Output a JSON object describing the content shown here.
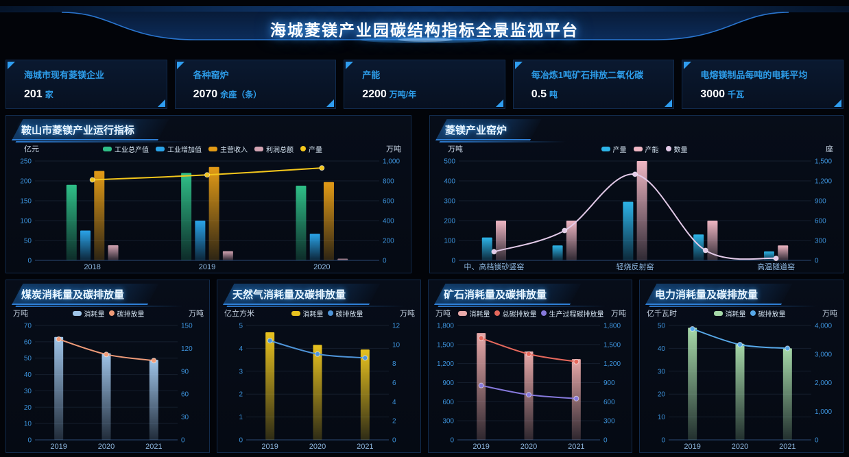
{
  "header": {
    "title": "海城菱镁产业园碳结构指标全景监视平台"
  },
  "colors": {
    "accent_blue": "#2d9ce8",
    "title_glow": "#3da0ff",
    "panel_border": "#122b4c",
    "axis_label": "#3d93dc"
  },
  "stat_cards": [
    {
      "label": "海城市现有菱镁企业",
      "value": "201",
      "unit": "家"
    },
    {
      "label": "各种窑炉",
      "value": "2070",
      "unit": "余座（条）"
    },
    {
      "label": "产能",
      "value": "2200",
      "unit": "万吨/年"
    },
    {
      "label": "每冶炼1吨矿石排放二氧化碳",
      "value": "0.5",
      "unit": "吨"
    },
    {
      "label": "电熔镁制品每吨的电耗平均",
      "value": "3000",
      "unit": "千瓦"
    }
  ],
  "chart_data": [
    {
      "type": "bar+line",
      "title": "鞍山市菱镁产业运行指标",
      "left_unit": "亿元",
      "right_unit": "万吨",
      "left_ticks": [
        0,
        50,
        100,
        150,
        200,
        250
      ],
      "right_ticks": [
        0,
        200,
        400,
        600,
        800,
        1000
      ],
      "categories": [
        "2018",
        "2019",
        "2020"
      ],
      "legend_position": "top-center",
      "grid": true,
      "series": [
        {
          "name": "工业总产值",
          "type": "bar",
          "axis": "left",
          "color": "#2fbf87",
          "values": [
            190,
            220,
            188
          ]
        },
        {
          "name": "工业增加值",
          "type": "bar",
          "axis": "left",
          "color": "#2aa3e8",
          "values": [
            75,
            100,
            67
          ]
        },
        {
          "name": "主营收入",
          "type": "bar",
          "axis": "left",
          "color": "#e39b16",
          "values": [
            225,
            235,
            197
          ]
        },
        {
          "name": "利润总额",
          "type": "bar",
          "axis": "left",
          "color": "#d2a3b2",
          "values": [
            38,
            23,
            4
          ]
        },
        {
          "name": "产量",
          "type": "line",
          "axis": "right",
          "color": "#f3c61c",
          "values": [
            810,
            860,
            930
          ]
        }
      ]
    },
    {
      "type": "bar+line",
      "title": "菱镁产业窑炉",
      "left_unit": "万吨",
      "right_unit": "座",
      "left_ticks": [
        0,
        100,
        200,
        300,
        400,
        500
      ],
      "right_ticks": [
        0,
        300,
        600,
        900,
        1200,
        1500
      ],
      "categories": [
        "中、高档镁砂竖窑",
        "",
        "轻烧反射窑",
        "",
        "高温隧道窑"
      ],
      "legend_position": "top-center",
      "grid": true,
      "series": [
        {
          "name": "产量",
          "type": "bar",
          "axis": "left",
          "color": "#2db4e8",
          "values": [
            115,
            75,
            295,
            130,
            45
          ]
        },
        {
          "name": "产能",
          "type": "bar",
          "axis": "left",
          "color": "#efb6c3",
          "values": [
            200,
            200,
            500,
            200,
            75
          ]
        },
        {
          "name": "数量",
          "type": "line",
          "axis": "right",
          "color": "#e3cae8",
          "values": [
            130,
            450,
            1300,
            150,
            30
          ]
        }
      ]
    },
    {
      "type": "bar+line",
      "title": "煤炭消耗量及碳排放量",
      "left_unit": "万吨",
      "right_unit": "万吨",
      "left_ticks": [
        0,
        10,
        20,
        30,
        40,
        50,
        60,
        70
      ],
      "right_ticks": [
        0,
        30,
        60,
        90,
        120,
        150
      ],
      "categories": [
        "2019",
        "2020",
        "2021"
      ],
      "legend_position": "top-center",
      "grid": true,
      "series": [
        {
          "name": "消耗量",
          "type": "bar",
          "axis": "left",
          "color": "#9fc4e8",
          "values": [
            63,
            53,
            49
          ]
        },
        {
          "name": "碳排放量",
          "type": "line",
          "axis": "right",
          "color": "#ef9b78",
          "values": [
            132,
            112,
            104
          ]
        }
      ]
    },
    {
      "type": "bar+line",
      "title": "天然气消耗量及碳排放量",
      "left_unit": "亿立方米",
      "right_unit": "万吨",
      "left_ticks": [
        0,
        1,
        2,
        3,
        4,
        5
      ],
      "right_ticks": [
        0,
        2,
        4,
        6,
        8,
        10,
        12
      ],
      "categories": [
        "2019",
        "2020",
        "2021"
      ],
      "legend_position": "top-center",
      "grid": true,
      "series": [
        {
          "name": "消耗量",
          "type": "bar",
          "axis": "left",
          "color": "#e8c21f",
          "values": [
            4.7,
            4.15,
            3.95
          ]
        },
        {
          "name": "碳排放量",
          "type": "line",
          "axis": "right",
          "color": "#4e94d8",
          "values": [
            10.4,
            9,
            8.6
          ]
        }
      ]
    },
    {
      "type": "bar+line",
      "title": "矿石消耗量及碳排放量",
      "left_unit": "万吨",
      "right_unit": "万吨",
      "left_ticks": [
        0,
        300,
        600,
        900,
        1200,
        1500,
        1800
      ],
      "right_ticks": [
        0,
        300,
        600,
        900,
        1200,
        1500,
        1800
      ],
      "categories": [
        "2019",
        "2020",
        "2021"
      ],
      "legend_position": "top-center",
      "grid": true,
      "series": [
        {
          "name": "消耗量",
          "type": "bar",
          "axis": "left",
          "color": "#e8a9a9",
          "values": [
            1680,
            1390,
            1270
          ]
        },
        {
          "name": "总碳排放量",
          "type": "line",
          "axis": "right",
          "color": "#e5685c",
          "values": [
            1600,
            1350,
            1230
          ]
        },
        {
          "name": "生产过程碳排放量",
          "type": "line",
          "axis": "right",
          "color": "#8679dc",
          "values": [
            855,
            710,
            650
          ]
        }
      ]
    },
    {
      "type": "bar+line",
      "title": "电力消耗量及碳排放量",
      "left_unit": "亿千瓦时",
      "right_unit": "万吨",
      "left_ticks": [
        0,
        10,
        20,
        30,
        40,
        50
      ],
      "right_ticks": [
        0,
        1000,
        2000,
        3000,
        4000
      ],
      "categories": [
        "2019",
        "2020",
        "2021"
      ],
      "legend_position": "top-center",
      "grid": true,
      "series": [
        {
          "name": "消耗量",
          "type": "bar",
          "axis": "left",
          "color": "#a5d8a8",
          "values": [
            49,
            42,
            40
          ]
        },
        {
          "name": "碳排放量",
          "type": "line",
          "axis": "right",
          "color": "#57a8e8",
          "values": [
            3880,
            3330,
            3200
          ]
        }
      ]
    }
  ]
}
